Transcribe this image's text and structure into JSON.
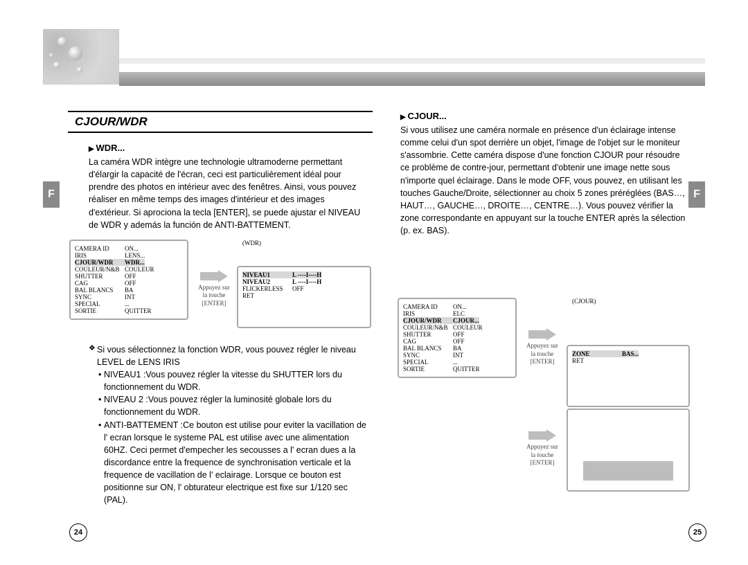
{
  "header": {
    "side_label": "F"
  },
  "section_title": "CJOUR/WDR",
  "left": {
    "subhead": "WDR...",
    "paragraph": "La caméra WDR intègre une technologie ultramoderne permettant d'élargir la capacité de l'écran, ceci est particulièrement idéal pour prendre des photos en intérieur avec des fenêtres. Ainsi, vous pouvez réaliser en même temps des images d'intérieur et des images d'extérieur. Si aprociona la tecla [ENTER], se puede ajustar el NIVEAU de WDR y además la función de ANTI-BATTEMENT.",
    "menu1": {
      "rows": [
        {
          "k": "CAMERA ID",
          "v": "ON..."
        },
        {
          "k": "IRIS",
          "v": "LENS..."
        },
        {
          "k": "CJOUR/WDR",
          "v": "WDR...",
          "sel": true,
          "bold": true
        },
        {
          "k": "COULEUR/N&B",
          "v": "COULEUR"
        },
        {
          "k": "SHUTTER",
          "v": "OFF"
        },
        {
          "k": "CAG",
          "v": "OFF"
        },
        {
          "k": "BAL BLANCS",
          "v": "BA"
        },
        {
          "k": "SYNC",
          "v": "INT"
        },
        {
          "k": "SPECIAL",
          "v": "..."
        },
        {
          "k": "SORTIE",
          "v": "QUITTER"
        }
      ]
    },
    "arrow_label": "Appuyez sur la touche [ENTER]",
    "menu2": {
      "title": "(WDR)",
      "rows": [
        {
          "k": "NIVEAU1",
          "v": "L ----I----H",
          "sel": true,
          "bold": true
        },
        {
          "k": "NIVEAU2",
          "v": "L ----I----H",
          "bold": true
        },
        {
          "k": "FLICKERLESS",
          "v": "OFF"
        },
        {
          "k": "",
          "v": ""
        },
        {
          "k": "RET",
          "v": ""
        }
      ]
    },
    "bullets": {
      "main": "Si vous sélectionnez la fonction WDR, vous pouvez régler le niveau LEVEL de LENS IRIS",
      "subs": [
        {
          "label": "NIVEAU1 :",
          "text": "Vous pouvez régler la vitesse du SHUTTER lors du fonctionnement du WDR."
        },
        {
          "label": "NIVEAU 2 :",
          "text": "Vous pouvez régler la luminosité globale lors du fonctionnement du WDR."
        },
        {
          "label": "ANTI-BATTEMENT :",
          "text": "Ce bouton est utilise pour eviter la vacillation de l' ecran lorsque le systeme PAL est utilise avec une alimentation 60HZ. Ceci permet d'empecher les secousses a l' ecran dues a la discordance entre la frequence de synchronisation verticale et la frequence de vacillation de l' eclairage. Lorsque ce bouton est positionne sur ON, l' obturateur electrique est fixe sur 1/120 sec (PAL)."
        }
      ]
    }
  },
  "right": {
    "subhead": "CJOUR...",
    "paragraph": "Si vous utilisez une caméra normale en présence d'un éclairage intense comme celui d'un spot derrière un objet, l'image de l'objet sur le moniteur s'assombrie. Cette caméra dispose d'une fonction CJOUR pour résoudre ce problème de contre-jour, permettant d'obtenir une image nette sous n'importe quel éclairage. Dans le mode OFF, vous pouvez, en utilisant les touches Gauche/Droite, sélectionner au choix 5 zones préréglées (BAS…, HAUT…, GAUCHE…, DROITE…, CENTRE…). Vous pouvez vérifier la zone correspondante en appuyant sur la touche ENTER après la sélection (p. ex. BAS).",
    "menu1": {
      "rows": [
        {
          "k": "CAMERA ID",
          "v": "ON..."
        },
        {
          "k": "IRIS",
          "v": "ELC"
        },
        {
          "k": "CJOUR/WDR",
          "v": "CJOUR...",
          "sel": true,
          "bold": true
        },
        {
          "k": "COULEUR/N&B",
          "v": "COULEUR"
        },
        {
          "k": "SHUTTER",
          "v": "OFF"
        },
        {
          "k": "CAG",
          "v": "OFF"
        },
        {
          "k": "BAL BLANCS",
          "v": "BA"
        },
        {
          "k": "SYNC",
          "v": "INT"
        },
        {
          "k": "SPECIAL",
          "v": "..."
        },
        {
          "k": "SORTIE",
          "v": "QUITTER"
        }
      ]
    },
    "arrow_label": "Appuyez sur la touche [ENTER]",
    "menu2": {
      "title": "(CJOUR)",
      "rows": [
        {
          "k": "ZONE",
          "v": "BAS...",
          "sel": true,
          "bold": true
        },
        {
          "k": "",
          "v": ""
        },
        {
          "k": "RET",
          "v": ""
        }
      ]
    },
    "arrow_label_2": "Appuyez sur la touche [ENTER]"
  },
  "page_left": "24",
  "page_right": "25",
  "colors": {
    "band": "#8a8a8a",
    "box_border": "#a8a8a8",
    "sel_bg": "#d8d8d8"
  }
}
